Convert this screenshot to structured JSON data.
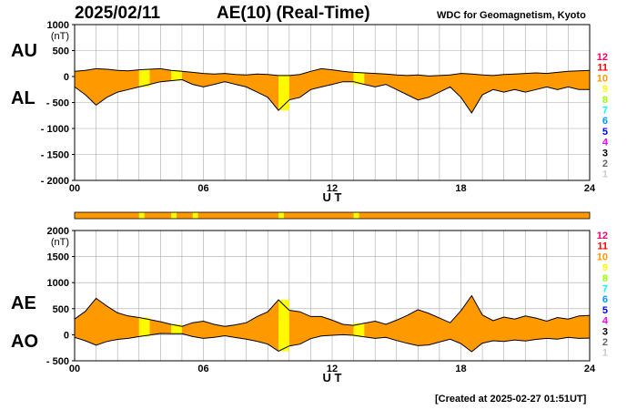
{
  "header": {
    "date": "2025/02/11",
    "title": "AE(10) (Real-Time)",
    "observatory": "WDC for Geomagnetism, Kyoto"
  },
  "footer": {
    "created": "[Created at 2025-02-27 01:51UT]"
  },
  "colors": {
    "fill": "#ff9900",
    "fill_alt": "#ffff00",
    "grid": "#aaaaaa",
    "line": "#000000"
  },
  "legend": {
    "levels": [
      "12",
      "11",
      "10",
      "9",
      "8",
      "7",
      "6",
      "5",
      "4",
      "3",
      "2",
      "1"
    ],
    "colors": [
      "#ff0066",
      "#ff0000",
      "#ff9900",
      "#ffff00",
      "#99ff00",
      "#00ffff",
      "#0099ff",
      "#0000ff",
      "#ff00ff",
      "#000000",
      "#666666",
      "#cccccc"
    ]
  },
  "chart_data": [
    {
      "type": "area",
      "panel": "top",
      "labels": [
        "AU",
        "AL"
      ],
      "yunit": "(nT)",
      "ylim": [
        -2000,
        1000
      ],
      "yticks": [
        "1000",
        "500",
        "0",
        "- 500",
        "- 1000",
        "- 1500",
        "- 2000"
      ],
      "xlim": [
        0,
        24
      ],
      "xticks": [
        "00",
        "06",
        "12",
        "18",
        "24"
      ],
      "xlabel": "U T",
      "grid": true,
      "series": [
        {
          "name": "AU",
          "x": [
            0,
            0.5,
            1,
            1.5,
            2,
            2.5,
            3,
            3.5,
            4,
            4.5,
            5,
            5.5,
            6,
            6.5,
            7,
            7.5,
            8,
            8.5,
            9,
            9.5,
            10,
            10.5,
            11,
            11.5,
            12,
            12.5,
            13,
            13.5,
            14,
            14.5,
            15,
            15.5,
            16,
            16.5,
            17,
            17.5,
            18,
            18.5,
            19,
            19.5,
            20,
            20.5,
            21,
            21.5,
            22,
            22.5,
            23,
            23.5,
            24
          ],
          "values": [
            100,
            120,
            150,
            140,
            120,
            110,
            130,
            140,
            150,
            120,
            100,
            80,
            60,
            50,
            60,
            40,
            30,
            50,
            40,
            20,
            20,
            40,
            100,
            150,
            130,
            100,
            80,
            70,
            60,
            50,
            30,
            20,
            30,
            10,
            20,
            30,
            60,
            50,
            30,
            20,
            40,
            50,
            60,
            70,
            60,
            80,
            100,
            110,
            120
          ]
        },
        {
          "name": "AL",
          "x": [
            0,
            0.5,
            1,
            1.5,
            2,
            2.5,
            3,
            3.5,
            4,
            4.5,
            5,
            5.5,
            6,
            6.5,
            7,
            7.5,
            8,
            8.5,
            9,
            9.5,
            10,
            10.5,
            11,
            11.5,
            12,
            12.5,
            13,
            13.5,
            14,
            14.5,
            15,
            15.5,
            16,
            16.5,
            17,
            17.5,
            18,
            18.5,
            19,
            19.5,
            20,
            20.5,
            21,
            21.5,
            22,
            22.5,
            23,
            23.5,
            24
          ],
          "values": [
            -200,
            -350,
            -550,
            -400,
            -300,
            -250,
            -200,
            -150,
            -100,
            -80,
            -60,
            -150,
            -200,
            -150,
            -100,
            -150,
            -200,
            -300,
            -400,
            -650,
            -450,
            -400,
            -250,
            -200,
            -150,
            -100,
            -100,
            -150,
            -200,
            -150,
            -250,
            -350,
            -450,
            -400,
            -300,
            -200,
            -400,
            -700,
            -350,
            -250,
            -300,
            -250,
            -300,
            -250,
            -200,
            -250,
            -200,
            -250,
            -250
          ]
        }
      ],
      "activity_levels": [
        "10",
        "10",
        "10",
        "10",
        "10",
        "10",
        "9",
        "10",
        "10",
        "9",
        "10",
        "10",
        "10",
        "10",
        "10",
        "10",
        "10",
        "10",
        "10",
        "9",
        "10",
        "10",
        "10",
        "10",
        "10",
        "10",
        "9",
        "10",
        "10",
        "10",
        "10",
        "10",
        "10",
        "10",
        "10",
        "10",
        "10",
        "10",
        "10",
        "10",
        "10",
        "10",
        "10",
        "10",
        "10",
        "10",
        "10",
        "10"
      ]
    },
    {
      "type": "area",
      "panel": "bottom",
      "labels": [
        "AE",
        "AO"
      ],
      "yunit": "(nT)",
      "ylim": [
        -500,
        2000
      ],
      "yticks": [
        "2000",
        "1500",
        "1000",
        "500",
        "0",
        "- 500"
      ],
      "xlim": [
        0,
        24
      ],
      "xticks": [
        "00",
        "06",
        "12",
        "18",
        "24"
      ],
      "xlabel": "U T",
      "grid": true,
      "series": [
        {
          "name": "AE",
          "x": [
            0,
            0.5,
            1,
            1.5,
            2,
            2.5,
            3,
            3.5,
            4,
            4.5,
            5,
            5.5,
            6,
            6.5,
            7,
            7.5,
            8,
            8.5,
            9,
            9.5,
            10,
            10.5,
            11,
            11.5,
            12,
            12.5,
            13,
            13.5,
            14,
            14.5,
            15,
            15.5,
            16,
            16.5,
            17,
            17.5,
            18,
            18.5,
            19,
            19.5,
            20,
            20.5,
            21,
            21.5,
            22,
            22.5,
            23,
            23.5,
            24
          ],
          "values": [
            300,
            450,
            700,
            550,
            420,
            360,
            330,
            290,
            250,
            200,
            160,
            230,
            260,
            200,
            160,
            190,
            230,
            350,
            440,
            670,
            470,
            440,
            350,
            350,
            280,
            200,
            180,
            220,
            260,
            200,
            280,
            370,
            480,
            410,
            320,
            230,
            460,
            750,
            380,
            270,
            340,
            300,
            360,
            320,
            260,
            330,
            300,
            360,
            370
          ]
        },
        {
          "name": "AO",
          "x": [
            0,
            0.5,
            1,
            1.5,
            2,
            2.5,
            3,
            3.5,
            4,
            4.5,
            5,
            5.5,
            6,
            6.5,
            7,
            7.5,
            8,
            8.5,
            9,
            9.5,
            10,
            10.5,
            11,
            11.5,
            12,
            12.5,
            13,
            13.5,
            14,
            14.5,
            15,
            15.5,
            16,
            16.5,
            17,
            17.5,
            18,
            18.5,
            19,
            19.5,
            20,
            20.5,
            21,
            21.5,
            22,
            22.5,
            23,
            23.5,
            24
          ],
          "values": [
            -50,
            -115,
            -200,
            -130,
            -90,
            -70,
            -35,
            -5,
            25,
            20,
            20,
            -35,
            -70,
            -50,
            -20,
            -55,
            -85,
            -125,
            -180,
            -315,
            -215,
            -180,
            -75,
            -25,
            -10,
            0,
            -10,
            -40,
            -70,
            -50,
            -110,
            -165,
            -210,
            -195,
            -140,
            -85,
            -170,
            -325,
            -160,
            -115,
            -130,
            -100,
            -120,
            -90,
            -70,
            -85,
            -50,
            -70,
            -65
          ]
        }
      ],
      "activity_levels": [
        "10",
        "10",
        "10",
        "10",
        "10",
        "10",
        "9",
        "10",
        "10",
        "9",
        "10",
        "10",
        "10",
        "10",
        "10",
        "10",
        "10",
        "10",
        "10",
        "9",
        "10",
        "10",
        "10",
        "10",
        "10",
        "10",
        "9",
        "10",
        "10",
        "10",
        "10",
        "10",
        "10",
        "10",
        "10",
        "10",
        "10",
        "10",
        "10",
        "10",
        "10",
        "10",
        "10",
        "10",
        "10",
        "10",
        "10",
        "10"
      ]
    },
    {
      "type": "heatmap",
      "panel": "strip",
      "xlim": [
        0,
        24
      ],
      "activity_levels": [
        "10",
        "10",
        "10",
        "10",
        "10",
        "10",
        "9",
        "10",
        "10",
        "9",
        "10",
        "9",
        "10",
        "10",
        "10",
        "10",
        "10",
        "10",
        "10",
        "9",
        "10",
        "10",
        "10",
        "10",
        "10",
        "10",
        "9",
        "10",
        "10",
        "10",
        "10",
        "10",
        "10",
        "10",
        "10",
        "10",
        "10",
        "10",
        "10",
        "10",
        "10",
        "10",
        "10",
        "10",
        "10",
        "10",
        "10",
        "10"
      ]
    }
  ]
}
